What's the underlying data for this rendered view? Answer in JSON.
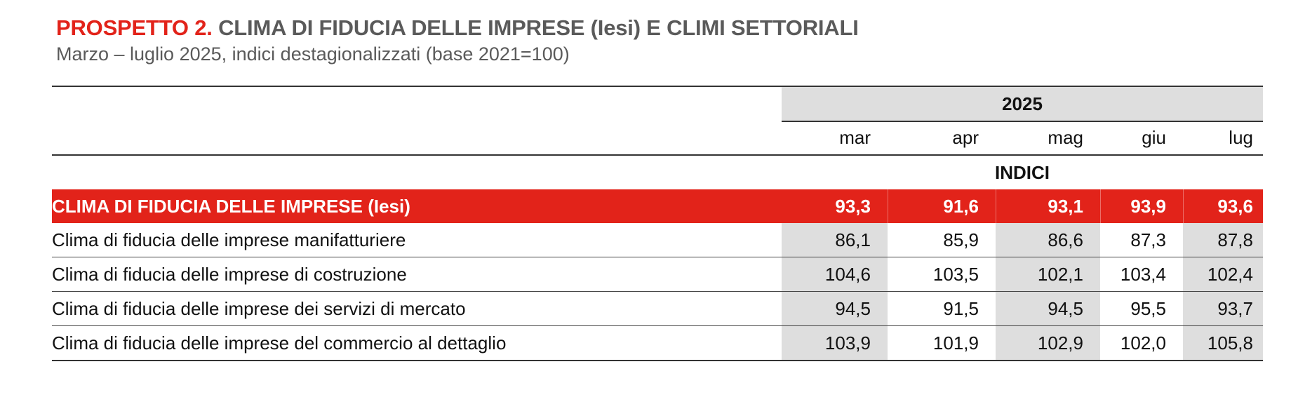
{
  "header": {
    "title_prefix": "PROSPETTO 2.",
    "title_main": " CLIMA DI FIDUCIA DELLE IMPRESE (Iesi) E CLIMI SETTORIALI",
    "subtitle": "Marzo – luglio 2025, indici destagionalizzati (base 2021=100)"
  },
  "table": {
    "year": "2025",
    "months": [
      "mar",
      "apr",
      "mag",
      "giu",
      "lug"
    ],
    "section_label": "INDICI",
    "headline": {
      "label": "CLIMA DI FIDUCIA DELLE IMPRESE (Iesi)",
      "values": [
        "93,3",
        "91,6",
        "93,1",
        "93,9",
        "93,6"
      ]
    },
    "rows": [
      {
        "label": "Clima di fiducia delle imprese manifatturiere",
        "values": [
          "86,1",
          "85,9",
          "86,6",
          "87,3",
          "87,8"
        ]
      },
      {
        "label": "Clima di fiducia delle imprese di costruzione",
        "values": [
          "104,6",
          "103,5",
          "102,1",
          "103,4",
          "102,4"
        ]
      },
      {
        "label": "Clima di fiducia delle imprese dei servizi di mercato",
        "values": [
          "94,5",
          "91,5",
          "94,5",
          "95,5",
          "93,7"
        ]
      },
      {
        "label": "Clima di fiducia delle imprese del commercio al dettaglio",
        "values": [
          "103,9",
          "101,9",
          "102,9",
          "102,0",
          "105,8"
        ]
      }
    ]
  },
  "colors": {
    "accent_red": "#e2231a",
    "shade_gray": "#dedede",
    "title_gray": "#5a5a5a"
  }
}
